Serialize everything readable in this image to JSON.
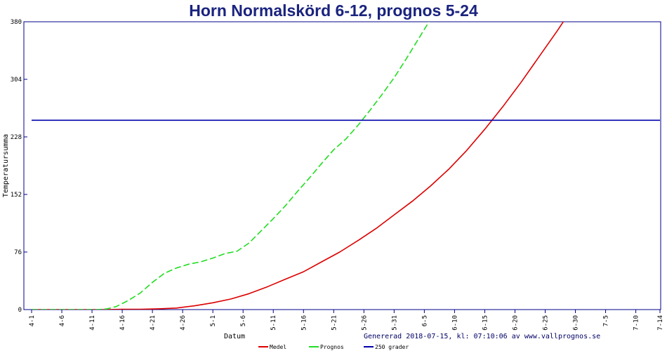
{
  "chart_data": {
    "type": "line",
    "title": "Horn Normalskörd 6-12, prognos 5-24",
    "xlabel": "Datum",
    "ylabel": "Temperatursumma",
    "generated_text": "Genererad 2018-07-15, kl: 07:10:06 av www.vallprognos.se",
    "ylim": [
      0,
      380
    ],
    "y_ticks": [
      0,
      76,
      152,
      228,
      304,
      380
    ],
    "x_days_range": [
      0,
      104
    ],
    "x_ticks": [
      {
        "label": "4-1",
        "day": 0
      },
      {
        "label": "4-6",
        "day": 5
      },
      {
        "label": "4-11",
        "day": 10
      },
      {
        "label": "4-16",
        "day": 15
      },
      {
        "label": "4-21",
        "day": 20
      },
      {
        "label": "4-26",
        "day": 25
      },
      {
        "label": "5-1",
        "day": 30
      },
      {
        "label": "5-6",
        "day": 35
      },
      {
        "label": "5-11",
        "day": 40
      },
      {
        "label": "5-16",
        "day": 45
      },
      {
        "label": "5-21",
        "day": 50
      },
      {
        "label": "5-26",
        "day": 55
      },
      {
        "label": "5-31",
        "day": 60
      },
      {
        "label": "6-5",
        "day": 65
      },
      {
        "label": "6-10",
        "day": 70
      },
      {
        "label": "6-15",
        "day": 75
      },
      {
        "label": "6-20",
        "day": 80
      },
      {
        "label": "6-25",
        "day": 85
      },
      {
        "label": "6-30",
        "day": 90
      },
      {
        "label": "7-5",
        "day": 95
      },
      {
        "label": "7-10",
        "day": 100
      },
      {
        "label": "7-14",
        "day": 104
      }
    ],
    "series": [
      {
        "name": "Medel",
        "color": "#dd0000",
        "style": "solid",
        "points": [
          [
            0,
            0
          ],
          [
            12,
            0
          ],
          [
            15,
            0.5
          ],
          [
            18,
            0.5
          ],
          [
            21,
            1
          ],
          [
            24,
            2
          ],
          [
            27,
            5
          ],
          [
            30,
            9
          ],
          [
            33,
            14
          ],
          [
            36,
            21
          ],
          [
            39,
            30
          ],
          [
            42,
            40
          ],
          [
            45,
            50
          ],
          [
            48,
            63
          ],
          [
            51,
            76
          ],
          [
            54,
            91
          ],
          [
            57,
            107
          ],
          [
            60,
            125
          ],
          [
            63,
            143
          ],
          [
            66,
            163
          ],
          [
            69,
            185
          ],
          [
            72,
            210
          ],
          [
            75,
            238
          ],
          [
            78,
            268
          ],
          [
            81,
            300
          ],
          [
            84,
            334
          ],
          [
            87,
            368
          ],
          [
            89,
            392
          ]
        ]
      },
      {
        "name": "Prognos",
        "color": "#22dd22",
        "style": "dashed",
        "points": [
          [
            0,
            0
          ],
          [
            11,
            0
          ],
          [
            12.5,
            1
          ],
          [
            14,
            4
          ],
          [
            16,
            12
          ],
          [
            18,
            22
          ],
          [
            20,
            36
          ],
          [
            22,
            48
          ],
          [
            24,
            55
          ],
          [
            26,
            60
          ],
          [
            28,
            63
          ],
          [
            30,
            68
          ],
          [
            32,
            74
          ],
          [
            34,
            77
          ],
          [
            36,
            88
          ],
          [
            38,
            104
          ],
          [
            40,
            120
          ],
          [
            42,
            137
          ],
          [
            44,
            156
          ],
          [
            46,
            174
          ],
          [
            48,
            193
          ],
          [
            50,
            211
          ],
          [
            52,
            225
          ],
          [
            54,
            243
          ],
          [
            56,
            263
          ],
          [
            58,
            284
          ],
          [
            60,
            306
          ],
          [
            62,
            331
          ],
          [
            64,
            357
          ],
          [
            66,
            383
          ],
          [
            68,
            410
          ]
        ]
      },
      {
        "name": "250 grader",
        "color": "#0000aa",
        "style": "solid",
        "points": [
          [
            0,
            250
          ],
          [
            104,
            250
          ]
        ]
      }
    ],
    "legend_position": "bottom-center",
    "grid": false
  }
}
